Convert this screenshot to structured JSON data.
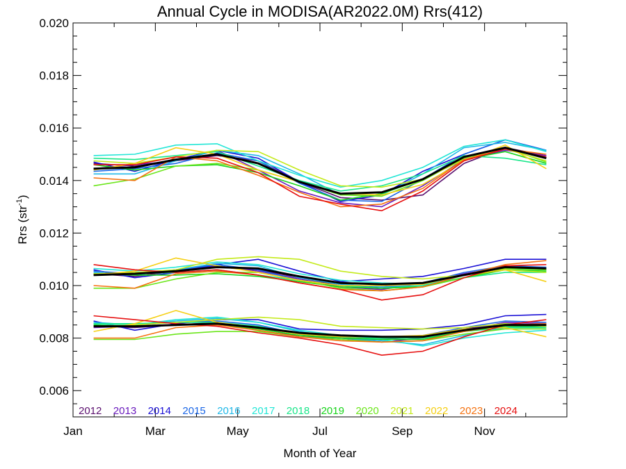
{
  "chart_data": {
    "type": "line",
    "title": "Annual Cycle in MODISA(AR2022.0M) Rrs(412)",
    "xlabel": "Month of Year",
    "ylabel": "Rrs (str",
    "ylabel_sup": "-1",
    "ylabel_close": ")",
    "xlim": [
      0,
      12
    ],
    "ylim": [
      0.005,
      0.02
    ],
    "x_ticks": [
      {
        "value": 0,
        "label": "Jan"
      },
      {
        "value": 2,
        "label": "Mar"
      },
      {
        "value": 4,
        "label": "May"
      },
      {
        "value": 6,
        "label": "Jul"
      },
      {
        "value": 8,
        "label": "Sep"
      },
      {
        "value": 10,
        "label": "Nov"
      }
    ],
    "y_ticks": [
      {
        "value": 0.006,
        "label": "0.006"
      },
      {
        "value": 0.008,
        "label": "0.008"
      },
      {
        "value": 0.01,
        "label": "0.010"
      },
      {
        "value": 0.012,
        "label": "0.012"
      },
      {
        "value": 0.014,
        "label": "0.014"
      },
      {
        "value": 0.016,
        "label": "0.016"
      },
      {
        "value": 0.018,
        "label": "0.018"
      },
      {
        "value": 0.02,
        "label": "0.020"
      }
    ],
    "x": [
      0.5,
      1.5,
      2.5,
      3.5,
      4.5,
      5.5,
      6.5,
      7.5,
      8.5,
      9.5,
      10.5,
      11.5
    ],
    "grid": false,
    "legend_position": "bottom-left",
    "series": [
      {
        "name": "2012",
        "color": "#5a0f6e",
        "groups": [
          [
            0.01465,
            0.01455,
            0.01475,
            0.01495,
            0.01475,
            0.01395,
            0.01335,
            0.01325,
            0.01345,
            0.01465,
            0.01525,
            0.01495
          ],
          [
            0.01045,
            0.01035,
            0.01055,
            0.0107,
            0.0106,
            0.0103,
            0.01,
            0.00995,
            0.0101,
            0.01045,
            0.0107,
            0.0106
          ],
          [
            0.00845,
            0.0084,
            0.0085,
            0.00855,
            0.0084,
            0.00815,
            0.008,
            0.00795,
            0.00805,
            0.00835,
            0.00855,
            0.0085
          ]
        ]
      },
      {
        "name": "2013",
        "color": "#6a1bbd",
        "groups": [
          [
            0.01445,
            0.0146,
            0.01475,
            0.01515,
            0.0144,
            0.0136,
            0.01315,
            0.013,
            0.0138,
            0.0148,
            0.01515,
            0.01495
          ],
          [
            0.0104,
            0.01045,
            0.0106,
            0.01075,
            0.01055,
            0.01025,
            0.00995,
            0.00985,
            0.0101,
            0.01045,
            0.0107,
            0.01065
          ],
          [
            0.0084,
            0.00845,
            0.0085,
            0.0086,
            0.0084,
            0.00805,
            0.008,
            0.00785,
            0.008,
            0.0083,
            0.0086,
            0.00855
          ]
        ]
      },
      {
        "name": "2014",
        "color": "#1a10d6",
        "groups": [
          [
            0.0147,
            0.01435,
            0.0148,
            0.01515,
            0.01485,
            0.01395,
            0.0132,
            0.01345,
            0.01435,
            0.015,
            0.01555,
            0.01515
          ],
          [
            0.0106,
            0.0103,
            0.0105,
            0.0108,
            0.011,
            0.01055,
            0.01015,
            0.01025,
            0.01035,
            0.01065,
            0.011,
            0.011
          ],
          [
            0.00865,
            0.0083,
            0.00855,
            0.0087,
            0.0087,
            0.00835,
            0.0083,
            0.0083,
            0.00835,
            0.0085,
            0.00885,
            0.0089
          ]
        ]
      },
      {
        "name": "2015",
        "color": "#1a66e6",
        "groups": [
          [
            0.01435,
            0.01445,
            0.01465,
            0.01505,
            0.01475,
            0.0139,
            0.01325,
            0.0132,
            0.01405,
            0.015,
            0.01555,
            0.01515
          ],
          [
            0.01055,
            0.01045,
            0.0106,
            0.0108,
            0.0106,
            0.0102,
            0.01,
            0.0099,
            0.0101,
            0.0105,
            0.01075,
            0.0107
          ],
          [
            0.00855,
            0.0085,
            0.0086,
            0.00865,
            0.0085,
            0.00815,
            0.00805,
            0.008,
            0.0081,
            0.0084,
            0.00865,
            0.0086
          ]
        ]
      },
      {
        "name": "2016",
        "color": "#1fb8e8",
        "groups": [
          [
            0.01425,
            0.01425,
            0.01475,
            0.01515,
            0.01495,
            0.01425,
            0.01345,
            0.01345,
            0.01425,
            0.01525,
            0.01545,
            0.01515
          ],
          [
            0.0105,
            0.0104,
            0.0106,
            0.01085,
            0.01075,
            0.0103,
            0.01005,
            0.00995,
            0.01,
            0.0104,
            0.0107,
            0.01065
          ],
          [
            0.0086,
            0.0085,
            0.00865,
            0.00875,
            0.0086,
            0.00825,
            0.008,
            0.0079,
            0.00775,
            0.0081,
            0.0084,
            0.00845
          ]
        ]
      },
      {
        "name": "2017",
        "color": "#22e6d6",
        "groups": [
          [
            0.01495,
            0.015,
            0.01535,
            0.0154,
            0.01475,
            0.0142,
            0.01375,
            0.014,
            0.0145,
            0.0153,
            0.01555,
            0.0151
          ],
          [
            0.01065,
            0.01055,
            0.0107,
            0.0109,
            0.0108,
            0.01045,
            0.0102,
            0.0101,
            0.01005,
            0.0103,
            0.01065,
            0.0106
          ],
          [
            0.00855,
            0.0085,
            0.0087,
            0.0088,
            0.0086,
            0.0083,
            0.0081,
            0.00795,
            0.0077,
            0.008,
            0.0082,
            0.0083
          ]
        ]
      },
      {
        "name": "2018",
        "color": "#19e68a",
        "groups": [
          [
            0.01485,
            0.0148,
            0.01495,
            0.0151,
            0.01455,
            0.014,
            0.0136,
            0.0138,
            0.01425,
            0.01495,
            0.01485,
            0.0146
          ],
          [
            0.01045,
            0.01045,
            0.0105,
            0.0106,
            0.0104,
            0.0102,
            0.01,
            0.0099,
            0.01,
            0.0103,
            0.0105,
            0.0105
          ],
          [
            0.00855,
            0.00855,
            0.0086,
            0.0086,
            0.00845,
            0.00815,
            0.00805,
            0.008,
            0.008,
            0.00825,
            0.0084,
            0.0084
          ]
        ]
      },
      {
        "name": "2019",
        "color": "#17d41a",
        "groups": [
          [
            0.0146,
            0.0144,
            0.01455,
            0.0146,
            0.0143,
            0.0138,
            0.01325,
            0.0135,
            0.01405,
            0.0148,
            0.0151,
            0.01465
          ],
          [
            0.01045,
            0.0104,
            0.0104,
            0.01045,
            0.01035,
            0.01015,
            0.00995,
            0.0099,
            0.00995,
            0.0103,
            0.0106,
            0.01055
          ],
          [
            0.0085,
            0.00845,
            0.0085,
            0.0085,
            0.00835,
            0.0081,
            0.008,
            0.00795,
            0.00795,
            0.00825,
            0.00845,
            0.00845
          ]
        ]
      },
      {
        "name": "2020",
        "color": "#6be61a",
        "groups": [
          [
            0.0138,
            0.01405,
            0.01455,
            0.01465,
            0.0144,
            0.01395,
            0.01345,
            0.0134,
            0.014,
            0.01485,
            0.01525,
            0.0147
          ],
          [
            0.0099,
            0.0099,
            0.01025,
            0.0105,
            0.0105,
            0.0102,
            0.0099,
            0.0098,
            0.00995,
            0.0103,
            0.01065,
            0.0106
          ],
          [
            0.00795,
            0.00795,
            0.00815,
            0.00825,
            0.00825,
            0.00805,
            0.00795,
            0.00785,
            0.0079,
            0.00815,
            0.00835,
            0.00835
          ]
        ]
      },
      {
        "name": "2021",
        "color": "#c4ea1a",
        "groups": [
          [
            0.01475,
            0.01465,
            0.0149,
            0.01515,
            0.0151,
            0.0144,
            0.0138,
            0.01375,
            0.01405,
            0.0148,
            0.0152,
            0.01475
          ],
          [
            0.01045,
            0.0105,
            0.0106,
            0.011,
            0.0111,
            0.011,
            0.01055,
            0.01035,
            0.01025,
            0.0104,
            0.0106,
            0.0105
          ],
          [
            0.00845,
            0.0085,
            0.0086,
            0.0087,
            0.0088,
            0.0087,
            0.00845,
            0.0084,
            0.00835,
            0.0084,
            0.00855,
            0.00845
          ]
        ]
      },
      {
        "name": "2022",
        "color": "#f5cf12",
        "groups": [
          [
            0.0144,
            0.01465,
            0.01525,
            0.015,
            0.0144,
            0.01395,
            0.0135,
            0.01345,
            0.01385,
            0.01475,
            0.01535,
            0.01445
          ],
          [
            0.0104,
            0.01055,
            0.01105,
            0.01075,
            0.0105,
            0.0102,
            0.01,
            0.01,
            0.01005,
            0.0104,
            0.0106,
            0.01015
          ],
          [
            0.00825,
            0.00855,
            0.00905,
            0.0086,
            0.0084,
            0.00815,
            0.00805,
            0.00805,
            0.0081,
            0.00835,
            0.0084,
            0.00805
          ]
        ]
      },
      {
        "name": "2023",
        "color": "#f5710e",
        "groups": [
          [
            0.0141,
            0.014,
            0.0149,
            0.01475,
            0.0142,
            0.01355,
            0.013,
            0.0131,
            0.0137,
            0.0148,
            0.0152,
            0.015
          ],
          [
            0.01,
            0.0099,
            0.01045,
            0.01055,
            0.0104,
            0.0101,
            0.00985,
            0.0098,
            0.00995,
            0.0104,
            0.0108,
            0.01095
          ],
          [
            0.008,
            0.008,
            0.0084,
            0.0085,
            0.0083,
            0.00805,
            0.0079,
            0.00785,
            0.0079,
            0.00825,
            0.0085,
            0.00855
          ]
        ]
      },
      {
        "name": "2024",
        "color": "#e60f0f",
        "groups": [
          [
            0.0146,
            0.0146,
            0.0149,
            0.01485,
            0.0143,
            0.0134,
            0.0131,
            0.01285,
            0.0136,
            0.01475,
            0.0152,
            0.0149
          ],
          [
            0.0108,
            0.0106,
            0.0105,
            0.0106,
            0.0104,
            0.0101,
            0.00985,
            0.00945,
            0.00965,
            0.0103,
            0.01075,
            0.0108
          ],
          [
            0.00885,
            0.0087,
            0.00855,
            0.00845,
            0.0082,
            0.008,
            0.00775,
            0.00735,
            0.0075,
            0.00805,
            0.0085,
            0.0087
          ]
        ]
      }
    ],
    "mean": {
      "color": "#000000",
      "groups": [
        [
          0.01445,
          0.0145,
          0.0148,
          0.015,
          0.01465,
          0.01395,
          0.0135,
          0.01355,
          0.01405,
          0.0149,
          0.01525,
          0.01485
        ],
        [
          0.0104,
          0.01045,
          0.01055,
          0.0107,
          0.01065,
          0.01035,
          0.0101,
          0.01005,
          0.0101,
          0.0104,
          0.0107,
          0.01065
        ],
        [
          0.00845,
          0.00845,
          0.0085,
          0.00855,
          0.0084,
          0.0082,
          0.0081,
          0.00805,
          0.00805,
          0.0083,
          0.0085,
          0.0085
        ]
      ]
    }
  }
}
